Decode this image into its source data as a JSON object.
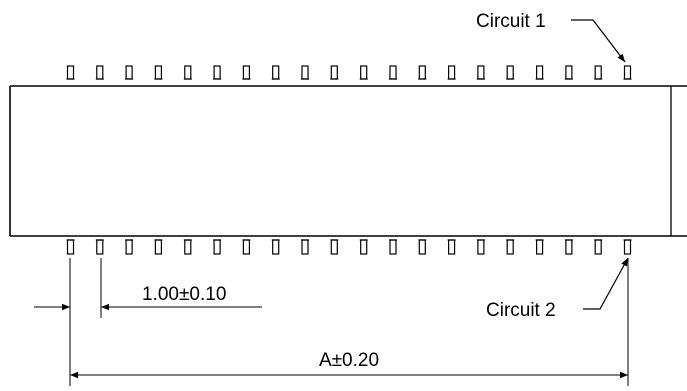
{
  "labels": {
    "circuit_1": "Circuit 1",
    "circuit_2": "Circuit 2",
    "pitch_dimension": "1.00±0.10",
    "overall_dimension": "A±0.20"
  },
  "pins": {
    "count_per_row": 20,
    "rows": [
      "top",
      "bottom"
    ]
  },
  "colors": {
    "line": "#000000",
    "background": "#ffffff"
  }
}
